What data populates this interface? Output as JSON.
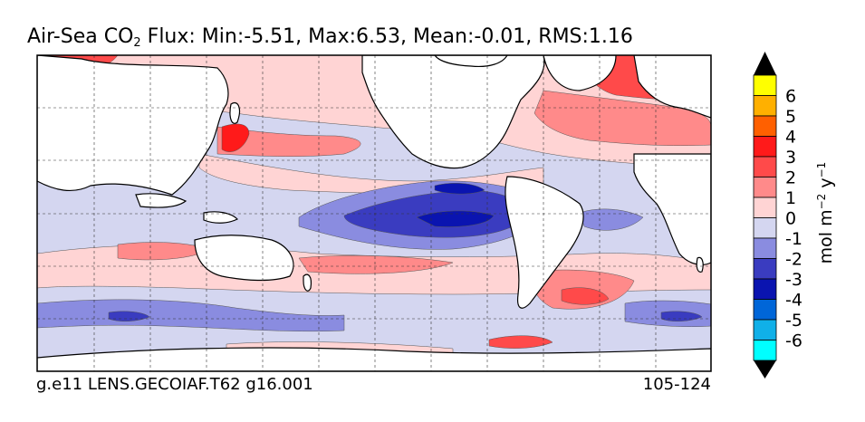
{
  "title": {
    "prefix": "Air-Sea CO",
    "subscript": "2",
    "stats": " Flux: Min:-5.51, Max:6.53, Mean:-0.01, RMS:1.16"
  },
  "footer": {
    "case_name": "g.e11 LENS.GECOIAF.T62 g16.001",
    "years": "105-124"
  },
  "colorbar": {
    "unit_label": "mol m",
    "unit_exp1": "−2",
    "unit_mid": " y",
    "unit_exp2": "−1",
    "ticks": [
      "6",
      "5",
      "4",
      "3",
      "2",
      "1",
      "0",
      "-1",
      "-2",
      "-3",
      "-4",
      "-5",
      "-6"
    ],
    "colors_top_to_bottom": [
      "#ffff00",
      "#ffb000",
      "#ff6000",
      "#ff1a1a",
      "#ff4a4a",
      "#ff8a8a",
      "#ffd4d4",
      "#d4d6f0",
      "#8a8ce0",
      "#3a3cc0",
      "#0a14b0",
      "#0066d8",
      "#10b0e8",
      "#00ffff"
    ],
    "over_color": "#000000",
    "under_color": "#000000"
  },
  "palette": {
    "ocean_pos1": "#ffd4d4",
    "ocean_pos2": "#ff8a8a",
    "ocean_pos3": "#ff4a4a",
    "ocean_pos4": "#ff1a1a",
    "ocean_neg1": "#d4d6f0",
    "ocean_neg2": "#8a8ce0",
    "ocean_neg3": "#3a3cc0",
    "ocean_neg4": "#0a14b0",
    "land": "#ffffff"
  }
}
